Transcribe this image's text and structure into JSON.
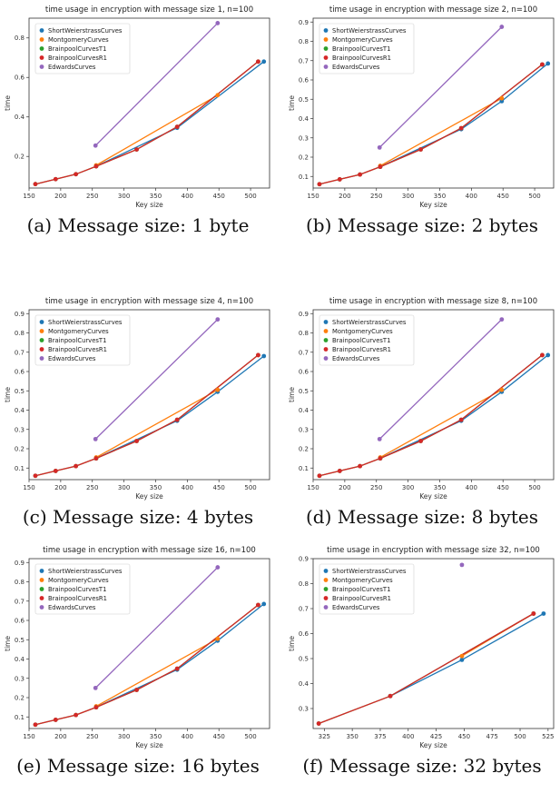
{
  "figure": {
    "captions": [
      "(a) Message size: 1 byte",
      "(b) Message size: 2 bytes",
      "(c) Message size: 4 bytes",
      "(d) Message size: 8 bytes",
      "(e) Message size: 16 bytes",
      "(f) Message size: 32 bytes"
    ]
  },
  "chart_data": [
    {
      "type": "line",
      "title": "time usage in encryption with message size 1, n=100",
      "xlabel": "Key size",
      "ylabel": "time",
      "xlim": [
        150,
        530
      ],
      "ylim": [
        0.04,
        0.9
      ],
      "xticks": [
        150,
        200,
        250,
        300,
        350,
        400,
        450,
        500
      ],
      "yticks": [
        0.2,
        0.4,
        0.6,
        0.8
      ],
      "ytick_decimals": 1,
      "legend_position": "top-left",
      "grid": false,
      "series": [
        {
          "name": "ShortWeierstrassCurves",
          "color": "#1f77b4",
          "x": [
            256,
            384,
            521
          ],
          "y": [
            0.15,
            0.345,
            0.68
          ]
        },
        {
          "name": "MontgomeryCurves",
          "color": "#ff7f0e",
          "x": [
            256,
            448
          ],
          "y": [
            0.155,
            0.51
          ]
        },
        {
          "name": "BrainpoolCurvesT1",
          "color": "#2ca02c",
          "x": [
            160,
            192,
            224,
            256,
            320,
            384,
            512
          ],
          "y": [
            0.06,
            0.085,
            0.11,
            0.15,
            0.235,
            0.35,
            0.68
          ]
        },
        {
          "name": "BrainpoolCurvesR1",
          "color": "#d62728",
          "x": [
            160,
            192,
            224,
            256,
            320,
            384,
            512
          ],
          "y": [
            0.06,
            0.085,
            0.11,
            0.15,
            0.235,
            0.35,
            0.68
          ]
        },
        {
          "name": "EdwardsCurves",
          "color": "#9467bd",
          "x": [
            255,
            448
          ],
          "y": [
            0.255,
            0.875
          ]
        }
      ]
    },
    {
      "type": "line",
      "title": "time usage in encryption with message size 2, n=100",
      "xlabel": "Key size",
      "ylabel": "time",
      "xlim": [
        150,
        530
      ],
      "ylim": [
        0.04,
        0.92
      ],
      "xticks": [
        150,
        200,
        250,
        300,
        350,
        400,
        450,
        500
      ],
      "yticks": [
        0.1,
        0.2,
        0.3,
        0.4,
        0.5,
        0.6,
        0.7,
        0.8,
        0.9
      ],
      "ytick_decimals": 1,
      "legend_position": "top-left",
      "grid": false,
      "series": [
        {
          "name": "ShortWeierstrassCurves",
          "color": "#1f77b4",
          "x": [
            256,
            384,
            448,
            521
          ],
          "y": [
            0.15,
            0.345,
            0.49,
            0.685
          ]
        },
        {
          "name": "MontgomeryCurves",
          "color": "#ff7f0e",
          "x": [
            256,
            448
          ],
          "y": [
            0.155,
            0.505
          ]
        },
        {
          "name": "BrainpoolCurvesT1",
          "color": "#2ca02c",
          "x": [
            160,
            192,
            224,
            256,
            320,
            384,
            512
          ],
          "y": [
            0.06,
            0.085,
            0.11,
            0.15,
            0.24,
            0.35,
            0.68
          ]
        },
        {
          "name": "BrainpoolCurvesR1",
          "color": "#d62728",
          "x": [
            160,
            192,
            224,
            256,
            320,
            384,
            512
          ],
          "y": [
            0.06,
            0.085,
            0.11,
            0.15,
            0.24,
            0.35,
            0.68
          ]
        },
        {
          "name": "EdwardsCurves",
          "color": "#9467bd",
          "x": [
            255,
            448
          ],
          "y": [
            0.25,
            0.875
          ]
        }
      ]
    },
    {
      "type": "line",
      "title": "time usage in encryption with message size 4, n=100",
      "xlabel": "Key size",
      "ylabel": "time",
      "xlim": [
        150,
        530
      ],
      "ylim": [
        0.04,
        0.92
      ],
      "xticks": [
        150,
        200,
        250,
        300,
        350,
        400,
        450,
        500
      ],
      "yticks": [
        0.1,
        0.2,
        0.3,
        0.4,
        0.5,
        0.6,
        0.7,
        0.8,
        0.9
      ],
      "ytick_decimals": 1,
      "legend_position": "top-left",
      "grid": false,
      "series": [
        {
          "name": "ShortWeierstrassCurves",
          "color": "#1f77b4",
          "x": [
            256,
            384,
            448,
            521
          ],
          "y": [
            0.15,
            0.345,
            0.495,
            0.68
          ]
        },
        {
          "name": "MontgomeryCurves",
          "color": "#ff7f0e",
          "x": [
            256,
            448
          ],
          "y": [
            0.155,
            0.505
          ]
        },
        {
          "name": "BrainpoolCurvesT1",
          "color": "#2ca02c",
          "x": [
            160,
            192,
            224,
            256,
            320,
            384,
            512
          ],
          "y": [
            0.06,
            0.085,
            0.11,
            0.15,
            0.24,
            0.35,
            0.685
          ]
        },
        {
          "name": "BrainpoolCurvesR1",
          "color": "#d62728",
          "x": [
            160,
            192,
            224,
            256,
            320,
            384,
            512
          ],
          "y": [
            0.06,
            0.085,
            0.11,
            0.15,
            0.24,
            0.35,
            0.685
          ]
        },
        {
          "name": "EdwardsCurves",
          "color": "#9467bd",
          "x": [
            255,
            448
          ],
          "y": [
            0.25,
            0.87
          ]
        }
      ]
    },
    {
      "type": "line",
      "title": "time usage in encryption with message size 8, n=100",
      "xlabel": "Key size",
      "ylabel": "time",
      "xlim": [
        150,
        530
      ],
      "ylim": [
        0.04,
        0.92
      ],
      "xticks": [
        150,
        200,
        250,
        300,
        350,
        400,
        450,
        500
      ],
      "yticks": [
        0.1,
        0.2,
        0.3,
        0.4,
        0.5,
        0.6,
        0.7,
        0.8,
        0.9
      ],
      "ytick_decimals": 1,
      "legend_position": "top-left",
      "grid": false,
      "series": [
        {
          "name": "ShortWeierstrassCurves",
          "color": "#1f77b4",
          "x": [
            256,
            384,
            448,
            521
          ],
          "y": [
            0.15,
            0.345,
            0.495,
            0.685
          ]
        },
        {
          "name": "MontgomeryCurves",
          "color": "#ff7f0e",
          "x": [
            256,
            448
          ],
          "y": [
            0.155,
            0.505
          ]
        },
        {
          "name": "BrainpoolCurvesT1",
          "color": "#2ca02c",
          "x": [
            160,
            192,
            224,
            256,
            320,
            384,
            512
          ],
          "y": [
            0.06,
            0.085,
            0.11,
            0.15,
            0.24,
            0.35,
            0.685
          ]
        },
        {
          "name": "BrainpoolCurvesR1",
          "color": "#d62728",
          "x": [
            160,
            192,
            224,
            256,
            320,
            384,
            512
          ],
          "y": [
            0.06,
            0.085,
            0.11,
            0.15,
            0.24,
            0.35,
            0.685
          ]
        },
        {
          "name": "EdwardsCurves",
          "color": "#9467bd",
          "x": [
            255,
            448
          ],
          "y": [
            0.25,
            0.87
          ]
        }
      ]
    },
    {
      "type": "line",
      "title": "time usage in encryption with message size 16, n=100",
      "xlabel": "Key size",
      "ylabel": "time",
      "xlim": [
        150,
        530
      ],
      "ylim": [
        0.04,
        0.92
      ],
      "xticks": [
        150,
        200,
        250,
        300,
        350,
        400,
        450,
        500
      ],
      "yticks": [
        0.1,
        0.2,
        0.3,
        0.4,
        0.5,
        0.6,
        0.7,
        0.8,
        0.9
      ],
      "ytick_decimals": 1,
      "legend_position": "top-left",
      "grid": false,
      "series": [
        {
          "name": "ShortWeierstrassCurves",
          "color": "#1f77b4",
          "x": [
            256,
            384,
            448,
            521
          ],
          "y": [
            0.15,
            0.345,
            0.495,
            0.685
          ]
        },
        {
          "name": "MontgomeryCurves",
          "color": "#ff7f0e",
          "x": [
            256,
            448
          ],
          "y": [
            0.155,
            0.505
          ]
        },
        {
          "name": "BrainpoolCurvesT1",
          "color": "#2ca02c",
          "x": [
            160,
            192,
            224,
            256,
            320,
            384,
            512
          ],
          "y": [
            0.06,
            0.085,
            0.11,
            0.15,
            0.24,
            0.35,
            0.68
          ]
        },
        {
          "name": "BrainpoolCurvesR1",
          "color": "#d62728",
          "x": [
            160,
            192,
            224,
            256,
            320,
            384,
            512
          ],
          "y": [
            0.06,
            0.085,
            0.11,
            0.15,
            0.24,
            0.35,
            0.68
          ]
        },
        {
          "name": "EdwardsCurves",
          "color": "#9467bd",
          "x": [
            255,
            448
          ],
          "y": [
            0.25,
            0.875
          ]
        }
      ]
    },
    {
      "type": "line",
      "title": "time usage in encryption with message size 32, n=100",
      "xlabel": "Key size",
      "ylabel": "time",
      "xlim": [
        315,
        530
      ],
      "ylim": [
        0.22,
        0.9
      ],
      "xticks": [
        325,
        350,
        375,
        400,
        425,
        450,
        475,
        500,
        525
      ],
      "yticks": [
        0.3,
        0.4,
        0.5,
        0.6,
        0.7,
        0.8,
        0.9
      ],
      "ytick_decimals": 1,
      "legend_position": "top-left",
      "grid": false,
      "series": [
        {
          "name": "ShortWeierstrassCurves",
          "color": "#1f77b4",
          "x": [
            384,
            448,
            521
          ],
          "y": [
            0.35,
            0.495,
            0.68
          ]
        },
        {
          "name": "MontgomeryCurves",
          "color": "#ff7f0e",
          "x": [
            448,
            512
          ],
          "y": [
            0.51,
            0.68
          ]
        },
        {
          "name": "BrainpoolCurvesT1",
          "color": "#2ca02c",
          "x": [
            320,
            384,
            512
          ],
          "y": [
            0.24,
            0.35,
            0.68
          ]
        },
        {
          "name": "BrainpoolCurvesR1",
          "color": "#d62728",
          "x": [
            320,
            384,
            512
          ],
          "y": [
            0.24,
            0.35,
            0.68
          ]
        },
        {
          "name": "EdwardsCurves",
          "color": "#9467bd",
          "x": [
            448
          ],
          "y": [
            0.875
          ]
        }
      ]
    }
  ]
}
